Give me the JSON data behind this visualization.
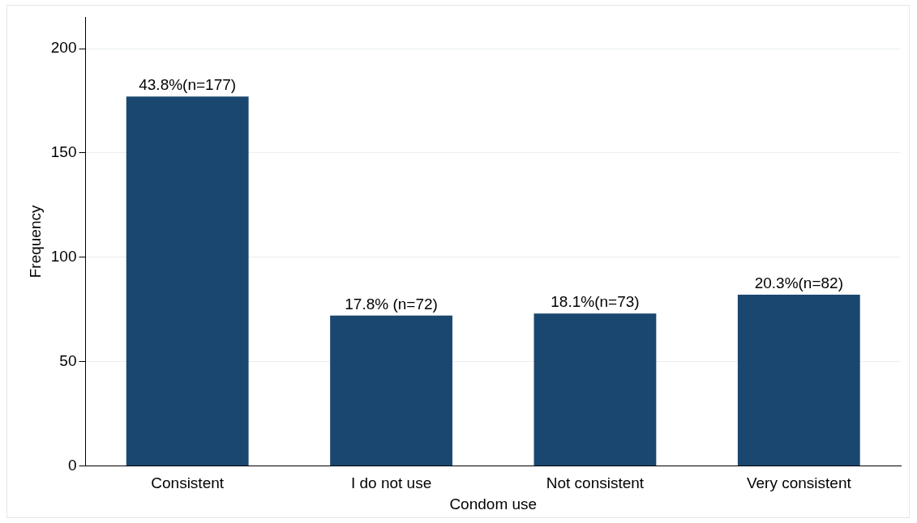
{
  "chart_data": {
    "type": "bar",
    "categories": [
      "Consistent",
      "I do not use",
      "Not consistent",
      "Very consistent"
    ],
    "values": [
      177,
      72,
      73,
      82
    ],
    "value_labels": [
      "43.8%(n=177)",
      "17.8% (n=72)",
      "18.1%(n=73)",
      "20.3%(n=82)"
    ],
    "color": "#1a476f",
    "xlabel": "Condom use",
    "ylabel": "Frequency",
    "ylim": [
      0,
      215
    ],
    "yticks": [
      0,
      50,
      100,
      150,
      200
    ],
    "grid": "y",
    "legend": false
  }
}
